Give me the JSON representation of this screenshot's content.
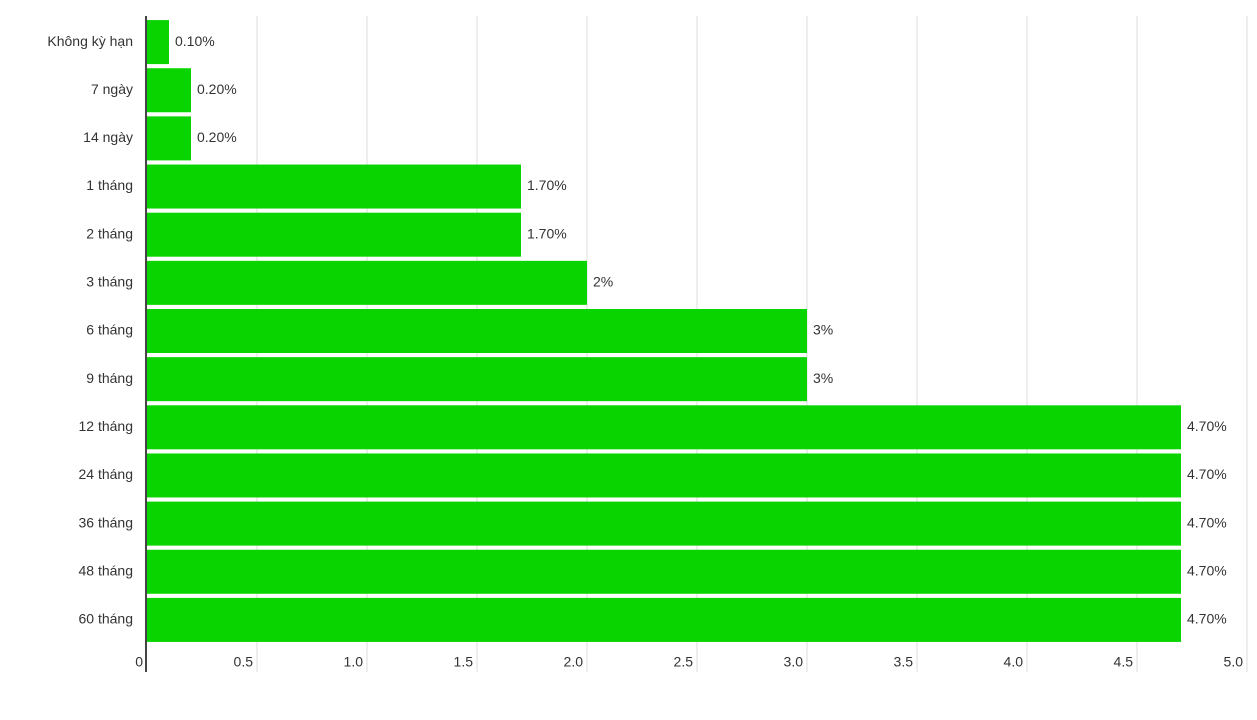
{
  "chart_data": {
    "type": "barh",
    "categories": [
      "Không kỳ hạn",
      "7 ngày",
      "14 ngày",
      "1 tháng",
      "2 tháng",
      "3 tháng",
      "6 tháng",
      "9 tháng",
      "12 tháng",
      "24 tháng",
      "36 tháng",
      "48 tháng",
      "60 tháng"
    ],
    "values": [
      0.1,
      0.2,
      0.2,
      1.7,
      1.7,
      2,
      3,
      3,
      4.7,
      4.7,
      4.7,
      4.7,
      4.7
    ],
    "value_labels": [
      "0.10%",
      "0.20%",
      "0.20%",
      "1.70%",
      "1.70%",
      "2%",
      "3%",
      "3%",
      "4.70%",
      "4.70%",
      "4.70%",
      "4.70%",
      "4.70%"
    ],
    "color": "#0ad400",
    "xlim": [
      0,
      5
    ],
    "xticks": [
      0,
      0.5,
      {
        "value": 1,
        "label": "1.0"
      },
      1.5,
      {
        "value": 2,
        "label": "2.0"
      },
      2.5,
      {
        "value": 3,
        "label": "3.0"
      },
      3.5,
      {
        "value": 4,
        "label": "4.0"
      },
      4.5,
      {
        "value": 5,
        "label": "5.0"
      }
    ],
    "grid": true
  }
}
